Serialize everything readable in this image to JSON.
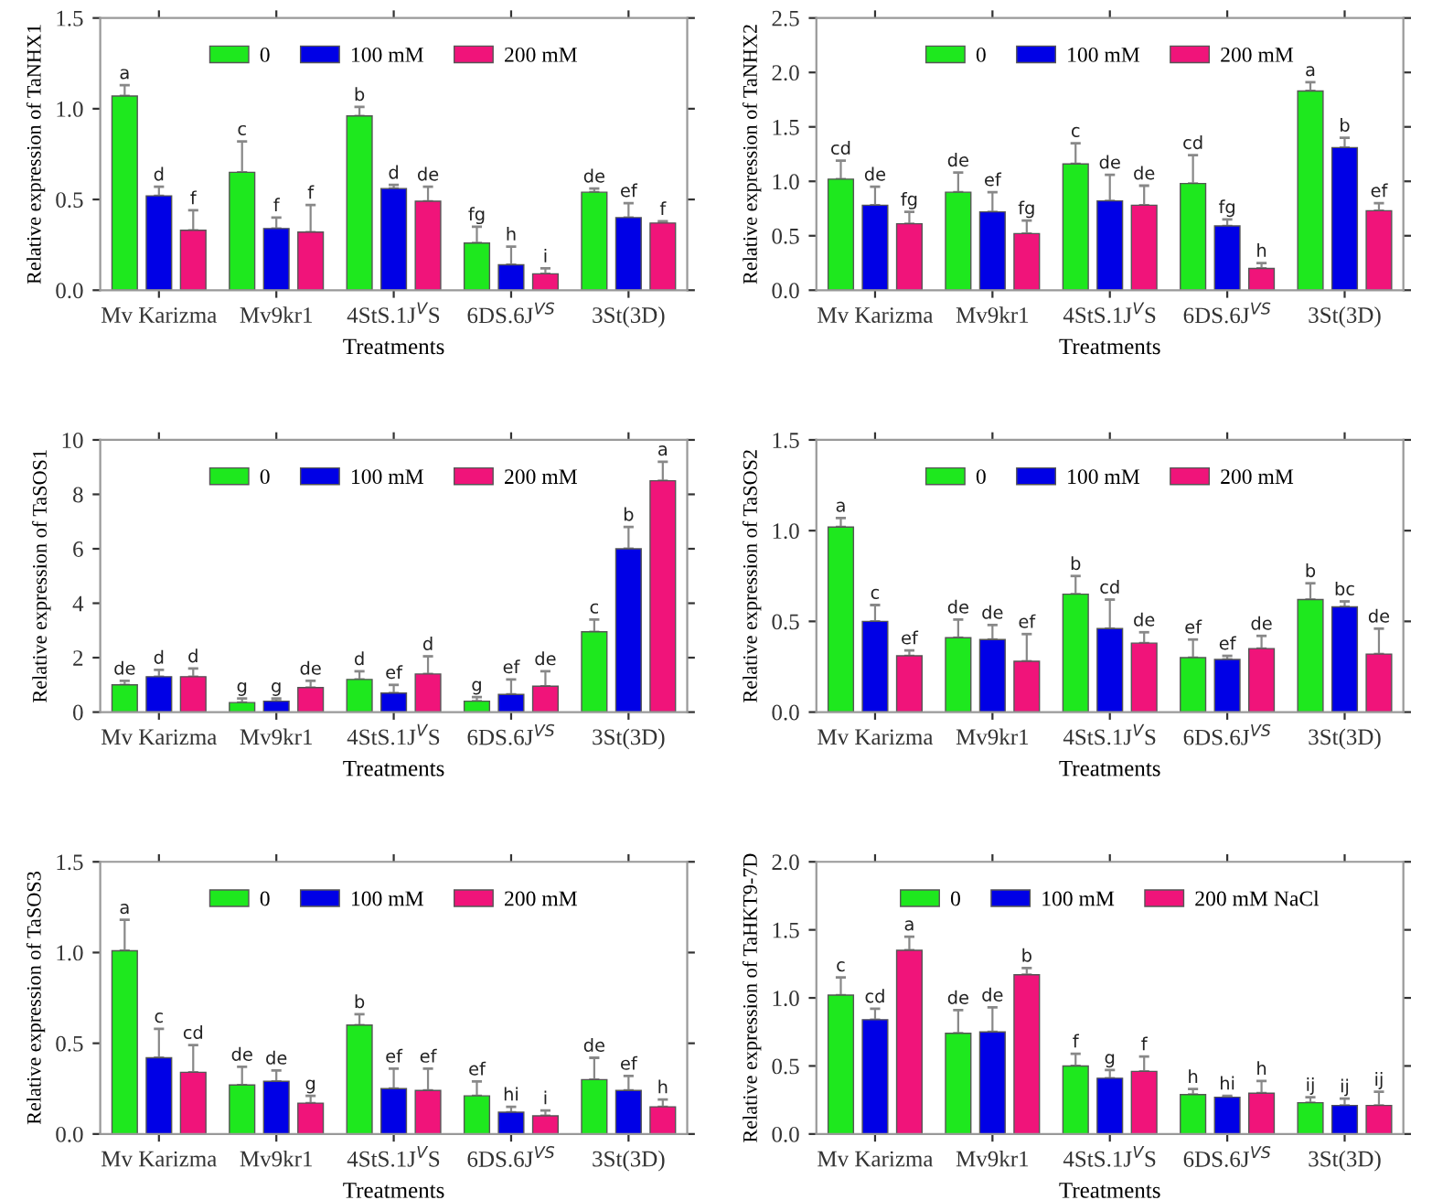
{
  "chart_data": [
    {
      "type": "bar",
      "xlabel": "Treatments",
      "ylabel": "Relative expression of TaNHX1",
      "categories": [
        "Mv Karizma",
        "Mv9kr1",
        "4StS.1J$^{V}$S",
        "6DS.6J$^{VS}$",
        "3St(3D)"
      ],
      "ylim": [
        0,
        1.5
      ],
      "yticks": [
        {
          "value": 0,
          "label": "0.0"
        },
        {
          "value": 0.5,
          "label": "0.5"
        },
        {
          "value": 1,
          "label": "1.0"
        },
        {
          "value": 1.5,
          "label": "1.5"
        }
      ],
      "legend": "top",
      "grid": false,
      "series": [
        {
          "name": "0",
          "color": "#1ee81e",
          "values": [
            1.07,
            0.65,
            0.96,
            0.26,
            0.54
          ],
          "errors": [
            0.06,
            0.17,
            0.05,
            0.09,
            0.02
          ],
          "value_labels": [
            "a",
            "c",
            "b",
            "fg",
            "de"
          ]
        },
        {
          "name": "100 mM",
          "color": "#0000e6",
          "values": [
            0.52,
            0.34,
            0.56,
            0.14,
            0.4
          ],
          "errors": [
            0.05,
            0.06,
            0.02,
            0.1,
            0.08
          ],
          "value_labels": [
            "d",
            "f",
            "d",
            "h",
            "ef"
          ]
        },
        {
          "name": "200 mM",
          "color": "#f0147a",
          "values": [
            0.33,
            0.32,
            0.49,
            0.09,
            0.37
          ],
          "errors": [
            0.11,
            0.15,
            0.08,
            0.03,
            0.01
          ],
          "value_labels": [
            "f",
            "f",
            "de",
            "i",
            "f"
          ]
        }
      ]
    },
    {
      "type": "bar",
      "xlabel": "Treatments",
      "ylabel": "Relative expression of TaNHX2",
      "categories": [
        "Mv Karizma",
        "Mv9kr1",
        "4StS.1J$^{V}$S",
        "6DS.6J$^{VS}$",
        "3St(3D)"
      ],
      "ylim": [
        0,
        2.5
      ],
      "yticks": [
        {
          "value": 0,
          "label": "0.0"
        },
        {
          "value": 0.5,
          "label": "0.5"
        },
        {
          "value": 1,
          "label": "1.0"
        },
        {
          "value": 1.5,
          "label": "1.5"
        },
        {
          "value": 2,
          "label": "2.0"
        },
        {
          "value": 2.5,
          "label": "2.5"
        }
      ],
      "legend": "top",
      "grid": false,
      "series": [
        {
          "name": "0",
          "color": "#1ee81e",
          "values": [
            1.02,
            0.9,
            1.16,
            0.98,
            1.83
          ],
          "errors": [
            0.17,
            0.18,
            0.19,
            0.26,
            0.08
          ],
          "value_labels": [
            "cd",
            "de",
            "c",
            "cd",
            "a"
          ]
        },
        {
          "name": "100 mM",
          "color": "#0000e6",
          "values": [
            0.78,
            0.72,
            0.82,
            0.59,
            1.31
          ],
          "errors": [
            0.17,
            0.18,
            0.24,
            0.06,
            0.09
          ],
          "value_labels": [
            "de",
            "ef",
            "de",
            "fg",
            "b"
          ]
        },
        {
          "name": "200 mM",
          "color": "#f0147a",
          "values": [
            0.61,
            0.52,
            0.78,
            0.2,
            0.73
          ],
          "errors": [
            0.11,
            0.12,
            0.18,
            0.05,
            0.07
          ],
          "value_labels": [
            "fg",
            "fg",
            "de",
            "h",
            "ef"
          ]
        }
      ]
    },
    {
      "type": "bar",
      "xlabel": "Treatments",
      "ylabel": "Relative expression of TaSOS1",
      "categories": [
        "Mv Karizma",
        "Mv9kr1",
        "4StS.1J$^{V}$S",
        "6DS.6J$^{VS}$",
        "3St(3D)"
      ],
      "ylim": [
        0,
        10
      ],
      "yticks": [
        0,
        2,
        4,
        6,
        8,
        10
      ],
      "legend": "top",
      "grid": false,
      "series": [
        {
          "name": "0",
          "color": "#1ee81e",
          "values": [
            1.0,
            0.35,
            1.2,
            0.4,
            2.95
          ],
          "errors": [
            0.15,
            0.15,
            0.3,
            0.15,
            0.45
          ],
          "value_labels": [
            "de",
            "g",
            "d",
            "g",
            "c"
          ]
        },
        {
          "name": "100 mM",
          "color": "#0000e6",
          "values": [
            1.3,
            0.4,
            0.7,
            0.65,
            6.0
          ],
          "errors": [
            0.25,
            0.1,
            0.3,
            0.55,
            0.8
          ],
          "value_labels": [
            "d",
            "g",
            "ef",
            "ef",
            "b"
          ]
        },
        {
          "name": "200 mM",
          "color": "#f0147a",
          "values": [
            1.3,
            0.9,
            1.4,
            0.95,
            8.5
          ],
          "errors": [
            0.3,
            0.25,
            0.65,
            0.55,
            0.7
          ],
          "value_labels": [
            "d",
            "de",
            "d",
            "de",
            "a"
          ]
        }
      ]
    },
    {
      "type": "bar",
      "xlabel": "Treatments",
      "ylabel": "Relative expression of TaSOS2",
      "categories": [
        "Mv Karizma",
        "Mv9kr1",
        "4StS.1J$^{V}$S",
        "6DS.6J$^{VS}$",
        "3St(3D)"
      ],
      "ylim": [
        0,
        1.5
      ],
      "yticks": [
        {
          "value": 0,
          "label": "0.0"
        },
        {
          "value": 0.5,
          "label": "0.5"
        },
        {
          "value": 1,
          "label": "1.0"
        },
        {
          "value": 1.5,
          "label": "1.5"
        }
      ],
      "legend": "top",
      "grid": false,
      "series": [
        {
          "name": "0",
          "color": "#1ee81e",
          "values": [
            1.02,
            0.41,
            0.65,
            0.3,
            0.62
          ],
          "errors": [
            0.05,
            0.1,
            0.1,
            0.1,
            0.09
          ],
          "value_labels": [
            "a",
            "de",
            "b",
            "ef",
            "b"
          ]
        },
        {
          "name": "100 mM",
          "color": "#0000e6",
          "values": [
            0.5,
            0.4,
            0.46,
            0.29,
            0.58
          ],
          "errors": [
            0.09,
            0.08,
            0.16,
            0.02,
            0.03
          ],
          "value_labels": [
            "c",
            "de",
            "cd",
            "ef",
            "bc"
          ]
        },
        {
          "name": "200 mM",
          "color": "#f0147a",
          "values": [
            0.31,
            0.28,
            0.38,
            0.35,
            0.32
          ],
          "errors": [
            0.03,
            0.15,
            0.06,
            0.07,
            0.14
          ],
          "value_labels": [
            "ef",
            "ef",
            "de",
            "de",
            "de"
          ]
        }
      ]
    },
    {
      "type": "bar",
      "xlabel": "Treatments",
      "ylabel": "Relative expression of TaSOS3",
      "categories": [
        "Mv Karizma",
        "Mv9kr1",
        "4StS.1J$^{V}$S",
        "6DS.6J$^{VS}$",
        "3St(3D)"
      ],
      "ylim": [
        0,
        1.5
      ],
      "yticks": [
        {
          "value": 0,
          "label": "0.0"
        },
        {
          "value": 0.5,
          "label": "0.5"
        },
        {
          "value": 1,
          "label": "1.0"
        },
        {
          "value": 1.5,
          "label": "1.5"
        }
      ],
      "legend": "top",
      "grid": false,
      "series": [
        {
          "name": "0",
          "color": "#1ee81e",
          "values": [
            1.01,
            0.27,
            0.6,
            0.21,
            0.3
          ],
          "errors": [
            0.17,
            0.1,
            0.06,
            0.08,
            0.12
          ],
          "value_labels": [
            "a",
            "de",
            "b",
            "ef",
            "de"
          ]
        },
        {
          "name": "100 mM",
          "color": "#0000e6",
          "values": [
            0.42,
            0.29,
            0.25,
            0.12,
            0.24
          ],
          "errors": [
            0.16,
            0.06,
            0.11,
            0.03,
            0.08
          ],
          "value_labels": [
            "c",
            "de",
            "ef",
            "hi",
            "ef"
          ]
        },
        {
          "name": "200 mM",
          "color": "#f0147a",
          "values": [
            0.34,
            0.17,
            0.24,
            0.1,
            0.15
          ],
          "errors": [
            0.15,
            0.04,
            0.12,
            0.03,
            0.04
          ],
          "value_labels": [
            "cd",
            "g",
            "ef",
            "i",
            "h"
          ]
        }
      ]
    },
    {
      "type": "bar",
      "xlabel": "Treatments",
      "ylabel": "Relative expression of TaHKT9-7D",
      "categories": [
        "Mv Karizma",
        "Mv9kr1",
        "4StS.1J$^{V}$S",
        "6DS.6J$^{VS}$",
        "3St(3D)"
      ],
      "ylim": [
        0,
        2.0
      ],
      "yticks": [
        {
          "value": 0,
          "label": "0.0"
        },
        {
          "value": 0.5,
          "label": "0.5"
        },
        {
          "value": 1,
          "label": "1.0"
        },
        {
          "value": 1.5,
          "label": "1.5"
        },
        {
          "value": 2,
          "label": "2.0"
        }
      ],
      "legend": "top",
      "grid": false,
      "series": [
        {
          "name": "0",
          "color": "#1ee81e",
          "values": [
            1.02,
            0.74,
            0.5,
            0.29,
            0.23
          ],
          "errors": [
            0.13,
            0.17,
            0.09,
            0.04,
            0.04
          ],
          "value_labels": [
            "c",
            "de",
            "f",
            "h",
            "ij"
          ]
        },
        {
          "name": "100 mM",
          "color": "#0000e6",
          "values": [
            0.84,
            0.75,
            0.41,
            0.27,
            0.21
          ],
          "errors": [
            0.08,
            0.18,
            0.06,
            0.01,
            0.05
          ],
          "value_labels": [
            "cd",
            "de",
            "g",
            "hi",
            "ij"
          ]
        },
        {
          "name": "200 mM NaCl",
          "color": "#f0147a",
          "values": [
            1.35,
            1.17,
            0.46,
            0.3,
            0.21
          ],
          "errors": [
            0.1,
            0.05,
            0.11,
            0.09,
            0.1
          ],
          "value_labels": [
            "a",
            "b",
            "f",
            "h",
            "ij"
          ]
        }
      ]
    }
  ]
}
